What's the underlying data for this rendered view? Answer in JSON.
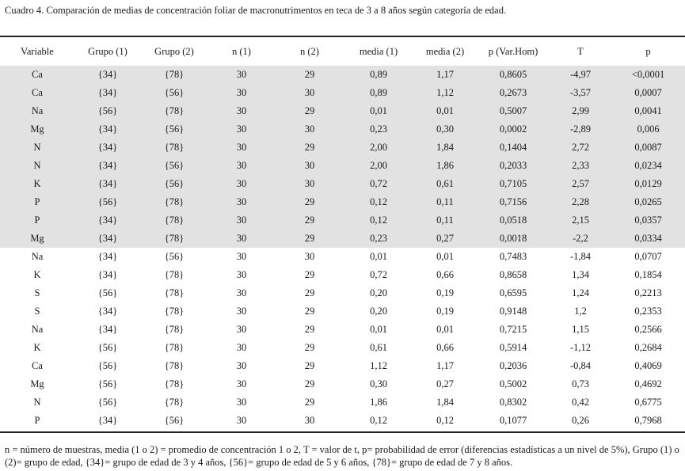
{
  "caption": "Cuadro 4.  Comparación de medias de concentración foliar de macronutrimentos en teca de 3 a 8 años según categoría de edad.",
  "table": {
    "headers": [
      "Variable",
      "Grupo (1)",
      "Grupo (2)",
      "n (1)",
      "n (2)",
      "media (1)",
      "media (2)",
      "p (Var.Hom)",
      "T",
      "p"
    ],
    "rows": [
      {
        "shaded": true,
        "cells": [
          "Ca",
          "{34}",
          "{78}",
          "30",
          "29",
          "0,89",
          "1,17",
          "0,8605",
          "-4,97",
          "<0,0001"
        ]
      },
      {
        "shaded": true,
        "cells": [
          "Ca",
          "{34}",
          "{56}",
          "30",
          "30",
          "0,89",
          "1,12",
          "0,2673",
          "-3,57",
          "0,0007"
        ]
      },
      {
        "shaded": true,
        "cells": [
          "Na",
          "{56}",
          "{78}",
          "30",
          "29",
          "0,01",
          "0,01",
          "0,5007",
          "2,99",
          "0,0041"
        ]
      },
      {
        "shaded": true,
        "cells": [
          "Mg",
          "{34}",
          "{56}",
          "30",
          "30",
          "0,23",
          "0,30",
          "0,0002",
          "-2,89",
          "0,006"
        ]
      },
      {
        "shaded": true,
        "cells": [
          "N",
          "{34}",
          "{78}",
          "30",
          "29",
          "2,00",
          "1,84",
          "0,1404",
          "2,72",
          "0,0087"
        ]
      },
      {
        "shaded": true,
        "cells": [
          "N",
          "{34}",
          "{56}",
          "30",
          "30",
          "2,00",
          "1,86",
          "0,2033",
          "2,33",
          "0,0234"
        ]
      },
      {
        "shaded": true,
        "cells": [
          "K",
          "{34}",
          "{56}",
          "30",
          "30",
          "0,72",
          "0,61",
          "0,7105",
          "2,57",
          "0,0129"
        ]
      },
      {
        "shaded": true,
        "cells": [
          "P",
          "{56}",
          "{78}",
          "30",
          "29",
          "0,12",
          "0,11",
          "0,7156",
          "2,28",
          "0,0265"
        ]
      },
      {
        "shaded": true,
        "cells": [
          "P",
          "{34}",
          "{78}",
          "30",
          "29",
          "0,12",
          "0,11",
          "0,0518",
          "2,15",
          "0,0357"
        ]
      },
      {
        "shaded": true,
        "cells": [
          "Mg",
          "{34}",
          "{78}",
          "30",
          "29",
          "0,23",
          "0,27",
          "0,0018",
          "-2,2",
          "0,0334"
        ]
      },
      {
        "shaded": false,
        "cells": [
          "Na",
          "{34}",
          "{56}",
          "30",
          "30",
          "0,01",
          "0,01",
          "0,7483",
          "-1,84",
          "0,0707"
        ]
      },
      {
        "shaded": false,
        "cells": [
          "K",
          "{34}",
          "{78}",
          "30",
          "29",
          "0,72",
          "0,66",
          "0,8658",
          "1,34",
          "0,1854"
        ]
      },
      {
        "shaded": false,
        "cells": [
          "S",
          "{56}",
          "{78}",
          "30",
          "29",
          "0,20",
          "0,19",
          "0,6595",
          "1,24",
          "0,2213"
        ]
      },
      {
        "shaded": false,
        "cells": [
          "S",
          "{34}",
          "{78}",
          "30",
          "29",
          "0,20",
          "0,19",
          "0,9148",
          "1,2",
          "0,2353"
        ]
      },
      {
        "shaded": false,
        "cells": [
          "Na",
          "{34}",
          "{78}",
          "30",
          "29",
          "0,01",
          "0,01",
          "0,7215",
          "1,15",
          "0,2566"
        ]
      },
      {
        "shaded": false,
        "cells": [
          "K",
          "{56}",
          "{78}",
          "30",
          "29",
          "0,61",
          "0,66",
          "0,5914",
          "-1,12",
          "0,2684"
        ]
      },
      {
        "shaded": false,
        "cells": [
          "Ca",
          "{56}",
          "{78}",
          "30",
          "29",
          "1,12",
          "1,17",
          "0,2036",
          "-0,84",
          "0,4069"
        ]
      },
      {
        "shaded": false,
        "cells": [
          "Mg",
          "{56}",
          "{78}",
          "30",
          "29",
          "0,30",
          "0,27",
          "0,5002",
          "0,73",
          "0,4692"
        ]
      },
      {
        "shaded": false,
        "cells": [
          "N",
          "{56}",
          "{78}",
          "30",
          "29",
          "1,86",
          "1,84",
          "0,8302",
          "0,42",
          "0,6775"
        ]
      },
      {
        "shaded": false,
        "cells": [
          "P",
          "{34}",
          "{56}",
          "30",
          "30",
          "0,12",
          "0,12",
          "0,1077",
          "0,26",
          "0,7968"
        ]
      }
    ]
  },
  "footnote": "n = número de muestras, media (1 o 2) = promedio de concentración 1 o 2, T = valor de t, p= probabilidad de error (diferencias estadísticas a un nivel de 5%), Grupo (1) o (2)= grupo de edad, {34}= grupo de edad de 3 y 4 años, {56}= grupo de edad de 5 y 6 años, {78}= grupo de edad de 7 y 8 años.",
  "colors": {
    "shaded_row": "#e2e2e2",
    "rule": "#222222",
    "text": "#1a1a1a"
  }
}
